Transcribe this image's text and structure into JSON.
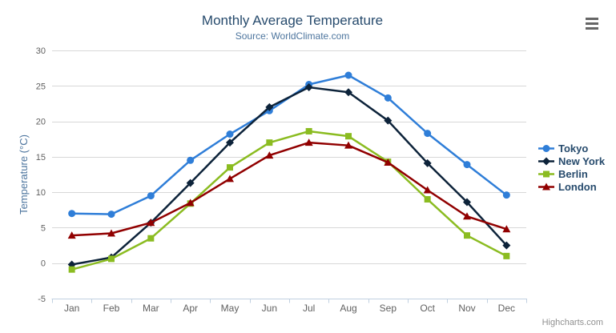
{
  "chart_data": {
    "type": "line",
    "title": "Monthly Average Temperature",
    "subtitle": "Source: WorldClimate.com",
    "categories": [
      "Jan",
      "Feb",
      "Mar",
      "Apr",
      "May",
      "Jun",
      "Jul",
      "Aug",
      "Sep",
      "Oct",
      "Nov",
      "Dec"
    ],
    "xlabel": "",
    "ylabel": "Temperature (°C)",
    "ylim": [
      -5,
      30
    ],
    "ytick_step": 5,
    "grid": true,
    "legend_position": "right",
    "series": [
      {
        "name": "Tokyo",
        "color": "#2f7ed8",
        "marker": "circle",
        "values": [
          7.0,
          6.9,
          9.5,
          14.5,
          18.2,
          21.5,
          25.2,
          26.5,
          23.3,
          18.3,
          13.9,
          9.6
        ]
      },
      {
        "name": "New York",
        "color": "#0d233a",
        "marker": "diamond",
        "values": [
          -0.2,
          0.8,
          5.7,
          11.3,
          17.0,
          22.0,
          24.8,
          24.1,
          20.1,
          14.1,
          8.6,
          2.5
        ]
      },
      {
        "name": "Berlin",
        "color": "#8bbc21",
        "marker": "square",
        "values": [
          -0.9,
          0.6,
          3.5,
          8.4,
          13.5,
          17.0,
          18.6,
          17.9,
          14.3,
          9.0,
          3.9,
          1.0
        ]
      },
      {
        "name": "London",
        "color": "#910000",
        "marker": "triangle",
        "values": [
          3.9,
          4.2,
          5.7,
          8.5,
          11.9,
          15.2,
          17.0,
          16.6,
          14.2,
          10.3,
          6.6,
          4.8
        ]
      }
    ]
  },
  "credits": "Highcharts.com",
  "export_menu": {
    "icon": "hamburger-icon"
  },
  "styles": {
    "title_color": "#274b6d",
    "subtitle_color": "#4d759e",
    "axis_label_color": "#606060",
    "axis_title_color": "#4d759e",
    "grid_color": "#d8d8d8",
    "axis_line_color": "#c0d0e0",
    "legend_text_color": "#274b6d",
    "credits_color": "#909090",
    "export_icon_color": "#666666"
  }
}
